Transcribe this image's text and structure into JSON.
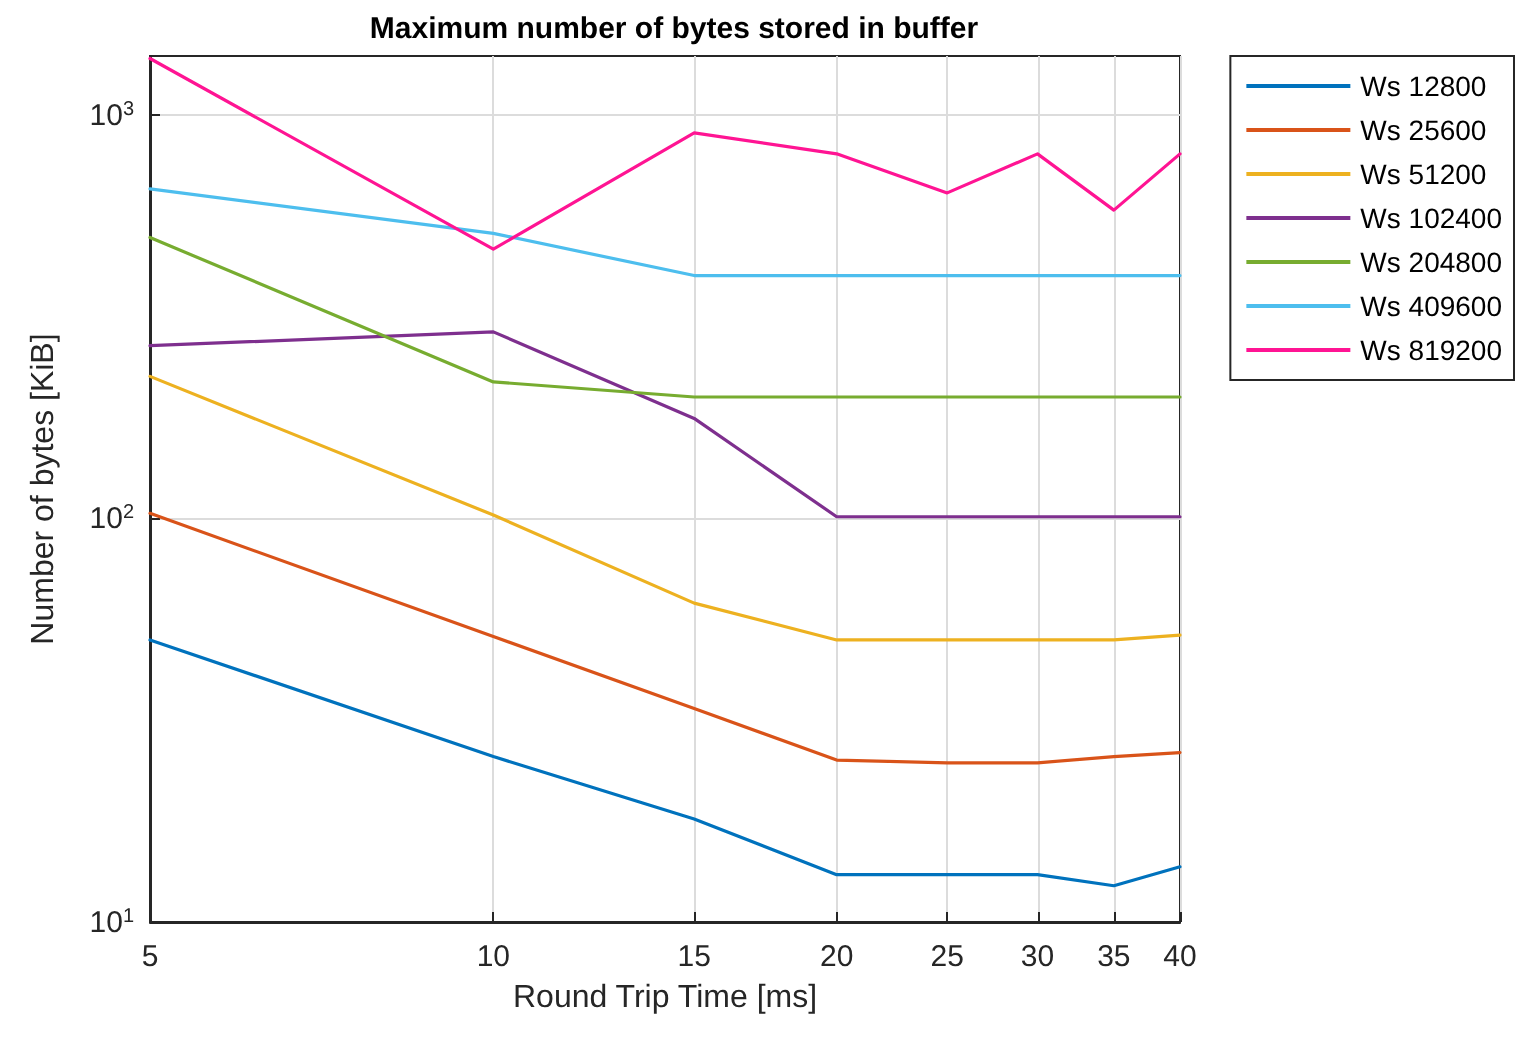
{
  "chart_data": {
    "type": "line",
    "title": "Maximum number of bytes stored in buffer",
    "xlabel": "Round Trip Time [ms]",
    "ylabel": "Number of bytes [KiB]",
    "x": [
      5,
      10,
      15,
      20,
      25,
      30,
      35,
      40
    ],
    "series": [
      {
        "name": "Ws 12800",
        "color": "#0072bd",
        "values": [
          50,
          25.7,
          18,
          13.1,
          13.1,
          13.1,
          12.3,
          13.7
        ]
      },
      {
        "name": "Ws 25600",
        "color": "#d95319",
        "values": [
          103,
          51,
          33.8,
          25.2,
          24.8,
          24.8,
          25.7,
          26.3
        ]
      },
      {
        "name": "Ws 51200",
        "color": "#edb120",
        "values": [
          225,
          102,
          61.7,
          50,
          50,
          50,
          50,
          51.4
        ]
      },
      {
        "name": "Ws 102400",
        "color": "#7e2f8e",
        "values": [
          268,
          290,
          177,
          101,
          101,
          101,
          101,
          101
        ]
      },
      {
        "name": "Ws 204800",
        "color": "#77ac30",
        "values": [
          497,
          218,
          200,
          200,
          200,
          200,
          200,
          200
        ]
      },
      {
        "name": "Ws 409600",
        "color": "#4dbeee",
        "values": [
          656,
          509,
          400,
          400,
          400,
          400,
          400,
          400
        ]
      },
      {
        "name": "Ws 819200",
        "color": "#ff1493",
        "values": [
          1380,
          465,
          903,
          801,
          641,
          801,
          581,
          801
        ]
      }
    ],
    "xlim": [
      5,
      40
    ],
    "xticks": [
      5,
      10,
      15,
      20,
      25,
      30,
      35,
      40
    ],
    "ylim": [
      10,
      1400
    ],
    "yticks": [
      {
        "value": 10,
        "label": "10$^{1}$"
      },
      {
        "value": 100,
        "label": "10$^{2}$"
      },
      {
        "value": 1000,
        "label": "10$^{3}$"
      }
    ],
    "log": "xy",
    "grid": true,
    "legend": "top right",
    "marker": "none",
    "line_style": "solid"
  }
}
